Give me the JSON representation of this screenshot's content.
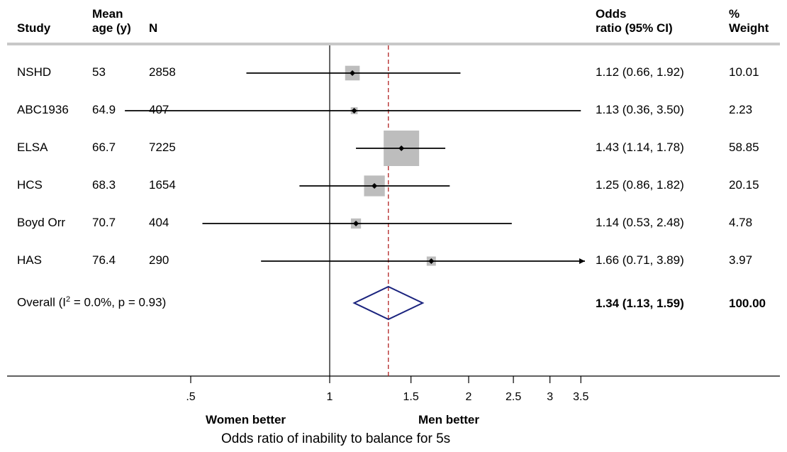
{
  "headers": {
    "study": "Study",
    "age_line1": "Mean",
    "age_line2": "age (y)",
    "n": "N",
    "or_line1": "Odds",
    "or_line2": "ratio (95% CI)",
    "weight_line1": "%",
    "weight_line2": "Weight"
  },
  "chart_data": {
    "type": "forest",
    "x_scale": "log",
    "x_ticks": [
      {
        "value": 0.5,
        "label": ".5"
      },
      {
        "value": 1,
        "label": "1"
      },
      {
        "value": 1.5,
        "label": "1.5"
      },
      {
        "value": 2,
        "label": "2"
      },
      {
        "value": 2.5,
        "label": "2.5"
      },
      {
        "value": 3,
        "label": "3"
      },
      {
        "value": 3.5,
        "label": "3.5"
      }
    ],
    "null_line": 1,
    "overall_line": 1.34,
    "xlabel": "Odds ratio of inability to balance for 5s",
    "left_label": "Women better",
    "right_label": "Men better",
    "studies": [
      {
        "name": "NSHD",
        "age": "53",
        "n": "2858",
        "or": 1.12,
        "lo": 0.66,
        "hi": 1.92,
        "or_text": "1.12 (0.66, 1.92)",
        "weight": 10.01,
        "weight_text": "10.01",
        "arrow_right": false
      },
      {
        "name": "ABC1936",
        "age": "64.9",
        "n": "407",
        "or": 1.13,
        "lo": 0.36,
        "hi": 3.5,
        "or_text": "1.13 (0.36, 3.50)",
        "weight": 2.23,
        "weight_text": "2.23",
        "arrow_right": false
      },
      {
        "name": "ELSA",
        "age": "66.7",
        "n": "7225",
        "or": 1.43,
        "lo": 1.14,
        "hi": 1.78,
        "or_text": "1.43 (1.14, 1.78)",
        "weight": 58.85,
        "weight_text": "58.85",
        "arrow_right": false
      },
      {
        "name": "HCS",
        "age": "68.3",
        "n": "1654",
        "or": 1.25,
        "lo": 0.86,
        "hi": 1.82,
        "or_text": "1.25 (0.86, 1.82)",
        "weight": 20.15,
        "weight_text": "20.15",
        "arrow_right": false
      },
      {
        "name": "Boyd Orr",
        "age": "70.7",
        "n": "404",
        "or": 1.14,
        "lo": 0.53,
        "hi": 2.48,
        "or_text": "1.14 (0.53, 2.48)",
        "weight": 4.78,
        "weight_text": "4.78",
        "arrow_right": false
      },
      {
        "name": "HAS",
        "age": "76.4",
        "n": "290",
        "or": 1.66,
        "lo": 0.71,
        "hi": 3.89,
        "or_text": "1.66 (0.71, 3.89)",
        "weight": 3.97,
        "weight_text": "3.97",
        "arrow_right": true
      }
    ],
    "overall": {
      "label_prefix": "Overall  (I",
      "label_sup": "2",
      "label_suffix": " = 0.0%, p = 0.93)",
      "or": 1.34,
      "lo": 1.13,
      "hi": 1.59,
      "or_text": "1.34 (1.13, 1.59)",
      "weight_text": "100.00"
    },
    "colors": {
      "box": "#bdbdbd",
      "diamond": "#1a237e",
      "overall_line": "#b22222",
      "header_rule": "#c8c8c8"
    }
  }
}
